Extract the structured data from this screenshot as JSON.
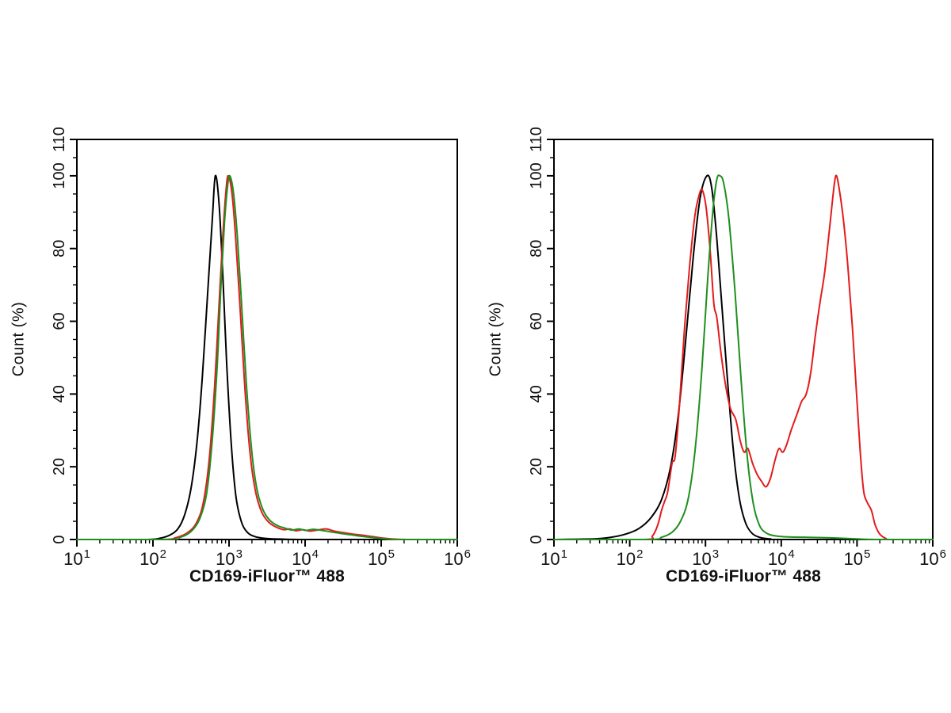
{
  "page": {
    "background": "#ffffff",
    "axis_color": "#000000",
    "text_color": "#111111"
  },
  "chart_data": {
    "type": "line",
    "subtype": "flow-cytometry-overlay-histograms",
    "grid": false,
    "legend": false,
    "panels": [
      {
        "id": "left",
        "xlabel": "CD169-iFluor™ 488",
        "ylabel": "Count (%)",
        "x_scale": "log10",
        "xlim_log10": [
          1,
          6
        ],
        "ylim": [
          0,
          110
        ],
        "x_major_exponents": [
          1,
          2,
          3,
          4,
          5,
          6
        ],
        "x_tick_base": "10",
        "y_major_ticks": [
          0,
          20,
          40,
          60,
          80,
          100,
          110
        ],
        "y_minor_step": 5,
        "series": [
          {
            "name": "black-control",
            "color": "#000000",
            "peak": {
              "x": 660,
              "y": 100
            },
            "points": [
              [
                1.0,
                0
              ],
              [
                1.9,
                0
              ],
              [
                2.1,
                0.4
              ],
              [
                2.22,
                1.2
              ],
              [
                2.33,
                3
              ],
              [
                2.42,
                7
              ],
              [
                2.5,
                14
              ],
              [
                2.58,
                27
              ],
              [
                2.65,
                45
              ],
              [
                2.72,
                68
              ],
              [
                2.78,
                88
              ],
              [
                2.82,
                100
              ],
              [
                2.87,
                92
              ],
              [
                2.92,
                72
              ],
              [
                2.97,
                48
              ],
              [
                3.03,
                26
              ],
              [
                3.09,
                12
              ],
              [
                3.16,
                5
              ],
              [
                3.24,
                2
              ],
              [
                3.34,
                0.8
              ],
              [
                3.48,
                0.3
              ],
              [
                3.7,
                0.1
              ],
              [
                4.0,
                0
              ],
              [
                5.0,
                0
              ],
              [
                6.0,
                0
              ]
            ]
          },
          {
            "name": "red-sample",
            "color": "#e31b1c",
            "peak": {
              "x": 950,
              "y": 100
            },
            "points": [
              [
                1.0,
                0
              ],
              [
                2.1,
                0
              ],
              [
                2.3,
                0.5
              ],
              [
                2.45,
                1.8
              ],
              [
                2.57,
                4.5
              ],
              [
                2.66,
                10
              ],
              [
                2.74,
                22
              ],
              [
                2.81,
                42
              ],
              [
                2.87,
                65
              ],
              [
                2.92,
                84
              ],
              [
                2.96,
                96
              ],
              [
                2.99,
                100
              ],
              [
                3.04,
                95
              ],
              [
                3.09,
                82
              ],
              [
                3.15,
                62
              ],
              [
                3.21,
                41
              ],
              [
                3.28,
                23
              ],
              [
                3.35,
                13
              ],
              [
                3.43,
                7.5
              ],
              [
                3.52,
                4.8
              ],
              [
                3.62,
                3.4
              ],
              [
                3.72,
                2.7
              ],
              [
                3.8,
                2.9
              ],
              [
                3.88,
                2.4
              ],
              [
                3.97,
                2.7
              ],
              [
                4.06,
                2.3
              ],
              [
                4.16,
                2.6
              ],
              [
                4.28,
                2.9
              ],
              [
                4.38,
                2.3
              ],
              [
                4.5,
                1.9
              ],
              [
                4.62,
                1.5
              ],
              [
                4.75,
                1.2
              ],
              [
                4.88,
                0.8
              ],
              [
                5.02,
                0.4
              ],
              [
                5.18,
                0.1
              ],
              [
                5.35,
                0
              ],
              [
                6.0,
                0
              ]
            ]
          },
          {
            "name": "green-sample",
            "color": "#1e8f1e",
            "peak": {
              "x": 1000,
              "y": 100
            },
            "points": [
              [
                1.0,
                0
              ],
              [
                2.18,
                0
              ],
              [
                2.36,
                0.6
              ],
              [
                2.5,
                2.2
              ],
              [
                2.61,
                5.5
              ],
              [
                2.7,
                12
              ],
              [
                2.77,
                25
              ],
              [
                2.84,
                46
              ],
              [
                2.89,
                68
              ],
              [
                2.94,
                87
              ],
              [
                2.98,
                97
              ],
              [
                3.01,
                100
              ],
              [
                3.06,
                95
              ],
              [
                3.11,
                83
              ],
              [
                3.17,
                63
              ],
              [
                3.23,
                42
              ],
              [
                3.3,
                24
              ],
              [
                3.37,
                13.5
              ],
              [
                3.45,
                8
              ],
              [
                3.54,
                5.2
              ],
              [
                3.64,
                3.8
              ],
              [
                3.74,
                3.1
              ],
              [
                3.83,
                2.6
              ],
              [
                3.92,
                2.9
              ],
              [
                4.01,
                2.5
              ],
              [
                4.11,
                2.8
              ],
              [
                4.22,
                2.5
              ],
              [
                4.34,
                2.1
              ],
              [
                4.46,
                1.7
              ],
              [
                4.6,
                1.3
              ],
              [
                4.74,
                0.9
              ],
              [
                4.9,
                0.5
              ],
              [
                5.05,
                0.2
              ],
              [
                5.2,
                0
              ],
              [
                6.0,
                0
              ]
            ]
          }
        ]
      },
      {
        "id": "right",
        "xlabel": "CD169-iFluor™ 488",
        "ylabel": "Count (%)",
        "x_scale": "log10",
        "xlim_log10": [
          1,
          6
        ],
        "ylim": [
          0,
          110
        ],
        "x_major_exponents": [
          1,
          2,
          3,
          4,
          5,
          6
        ],
        "x_tick_base": "10",
        "y_major_ticks": [
          0,
          20,
          40,
          60,
          80,
          100,
          110
        ],
        "y_minor_step": 5,
        "series": [
          {
            "name": "black-control",
            "color": "#000000",
            "peak": {
              "x": 1050,
              "y": 100
            },
            "points": [
              [
                1.0,
                0
              ],
              [
                1.55,
                0.2
              ],
              [
                1.75,
                0.6
              ],
              [
                1.95,
                1.5
              ],
              [
                2.12,
                3
              ],
              [
                2.28,
                6
              ],
              [
                2.42,
                11
              ],
              [
                2.54,
                20
              ],
              [
                2.64,
                34
              ],
              [
                2.74,
                55
              ],
              [
                2.84,
                78
              ],
              [
                2.93,
                94
              ],
              [
                3.02,
                100
              ],
              [
                3.08,
                97
              ],
              [
                3.14,
                85
              ],
              [
                3.21,
                66
              ],
              [
                3.29,
                44
              ],
              [
                3.37,
                24
              ],
              [
                3.45,
                11
              ],
              [
                3.53,
                4.5
              ],
              [
                3.62,
                1.6
              ],
              [
                3.73,
                0.5
              ],
              [
                3.86,
                0.15
              ],
              [
                4.0,
                0
              ],
              [
                6.0,
                0
              ]
            ]
          },
          {
            "name": "red-sample",
            "color": "#e31b1c",
            "peaks": [
              {
                "x": 890,
                "y": 96
              },
              {
                "x": 52000,
                "y": 100
              }
            ],
            "valley": {
              "x": 6600,
              "y": 14.5
            },
            "points": [
              [
                1.0,
                0
              ],
              [
                2.18,
                0
              ],
              [
                2.3,
                1
              ],
              [
                2.37,
                4
              ],
              [
                2.42,
                8
              ],
              [
                2.46,
                10.5
              ],
              [
                2.5,
                13
              ],
              [
                2.56,
                21
              ],
              [
                2.6,
                23
              ],
              [
                2.66,
                38
              ],
              [
                2.72,
                57
              ],
              [
                2.79,
                75
              ],
              [
                2.86,
                89
              ],
              [
                2.92,
                95
              ],
              [
                2.96,
                96
              ],
              [
                3.01,
                91
              ],
              [
                3.06,
                80
              ],
              [
                3.11,
                65
              ],
              [
                3.15,
                61
              ],
              [
                3.2,
                52
              ],
              [
                3.26,
                43
              ],
              [
                3.33,
                36
              ],
              [
                3.4,
                33
              ],
              [
                3.46,
                27
              ],
              [
                3.51,
                24
              ],
              [
                3.56,
                25
              ],
              [
                3.62,
                21
              ],
              [
                3.68,
                18
              ],
              [
                3.74,
                16
              ],
              [
                3.8,
                14.5
              ],
              [
                3.86,
                17
              ],
              [
                3.92,
                22
              ],
              [
                3.97,
                25
              ],
              [
                4.02,
                24
              ],
              [
                4.07,
                26
              ],
              [
                4.13,
                30
              ],
              [
                4.2,
                34
              ],
              [
                4.27,
                38
              ],
              [
                4.33,
                40
              ],
              [
                4.39,
                46
              ],
              [
                4.45,
                56
              ],
              [
                4.51,
                65
              ],
              [
                4.57,
                73
              ],
              [
                4.63,
                84
              ],
              [
                4.68,
                94
              ],
              [
                4.72,
                100
              ],
              [
                4.76,
                97
              ],
              [
                4.82,
                88
              ],
              [
                4.88,
                75
              ],
              [
                4.94,
                58
              ],
              [
                5.0,
                38
              ],
              [
                5.05,
                22
              ],
              [
                5.09,
                13
              ],
              [
                5.14,
                10
              ],
              [
                5.19,
                8
              ],
              [
                5.24,
                4
              ],
              [
                5.3,
                1.5
              ],
              [
                5.38,
                0.3
              ],
              [
                5.45,
                0
              ],
              [
                6.0,
                0
              ]
            ]
          },
          {
            "name": "green-sample",
            "color": "#1e8f1e",
            "peak": {
              "x": 1450,
              "y": 100
            },
            "points": [
              [
                1.0,
                0
              ],
              [
                2.25,
                0
              ],
              [
                2.42,
                0.6
              ],
              [
                2.56,
                2
              ],
              [
                2.67,
                5
              ],
              [
                2.77,
                11
              ],
              [
                2.86,
                24
              ],
              [
                2.95,
                46
              ],
              [
                3.03,
                72
              ],
              [
                3.1,
                91
              ],
              [
                3.15,
                99
              ],
              [
                3.19,
                100
              ],
              [
                3.24,
                98
              ],
              [
                3.31,
                88
              ],
              [
                3.39,
                68
              ],
              [
                3.47,
                44
              ],
              [
                3.55,
                23
              ],
              [
                3.63,
                10
              ],
              [
                3.71,
                4
              ],
              [
                3.8,
                1.8
              ],
              [
                3.92,
                1.0
              ],
              [
                4.1,
                0.7
              ],
              [
                4.35,
                0.6
              ],
              [
                4.6,
                0.5
              ],
              [
                4.85,
                0.3
              ],
              [
                5.05,
                0.1
              ],
              [
                5.25,
                0
              ],
              [
                6.0,
                0
              ]
            ]
          }
        ]
      }
    ]
  }
}
